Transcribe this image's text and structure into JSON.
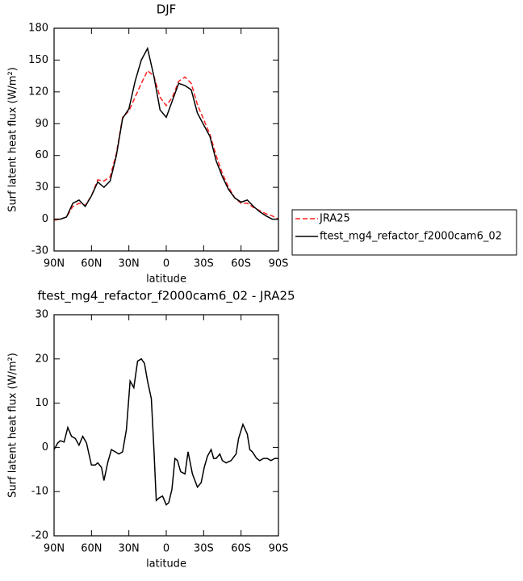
{
  "chart_data": [
    {
      "type": "line",
      "title": "DJF",
      "xlabel": "latitude",
      "ylabel": "Surf latent heat flux (W/m²)",
      "x": [
        90,
        85,
        80,
        75,
        70,
        65,
        60,
        55,
        50,
        45,
        40,
        35,
        30,
        25,
        20,
        15,
        10,
        5,
        0,
        -5,
        -10,
        -15,
        -20,
        -25,
        -30,
        -35,
        -40,
        -45,
        -50,
        -55,
        -60,
        -65,
        -70,
        -75,
        -80,
        -85,
        -90
      ],
      "series": [
        {
          "name": "JRA25",
          "color": "#ff2020",
          "linestyle": "dashed",
          "values": [
            -1,
            0,
            2,
            12,
            15,
            13,
            22,
            37,
            36,
            40,
            62,
            96,
            102,
            115,
            128,
            140,
            135,
            115,
            107,
            115,
            130,
            134,
            128,
            108,
            94,
            80,
            60,
            43,
            30,
            20,
            15,
            15,
            11,
            8,
            5,
            3,
            0
          ]
        },
        {
          "name": "ftest_mg4_refactor_f2000cam6_02",
          "color": "#000000",
          "linestyle": "solid",
          "values": [
            0,
            0,
            2,
            15,
            18,
            12,
            22,
            35,
            30,
            36,
            60,
            95,
            104,
            130,
            150,
            161,
            135,
            103,
            96,
            112,
            128,
            126,
            122,
            100,
            89,
            78,
            55,
            40,
            28,
            20,
            16,
            18,
            12,
            7,
            3,
            0,
            0
          ]
        }
      ],
      "xlim": [
        90,
        -90
      ],
      "xticks": [
        {
          "value": 90,
          "label": "90N"
        },
        {
          "value": 60,
          "label": "60N"
        },
        {
          "value": 30,
          "label": "30N"
        },
        0,
        {
          "value": -30,
          "label": "30S"
        },
        {
          "value": -60,
          "label": "60S"
        },
        {
          "value": -90,
          "label": "90S"
        }
      ],
      "ylim": [
        -30,
        180
      ],
      "yticks": [
        -30,
        0,
        30,
        60,
        90,
        120,
        150,
        180
      ],
      "grid": false,
      "legend": "right"
    },
    {
      "type": "line",
      "title": "ftest_mg4_refactor_f2000cam6_02 - JRA25",
      "xlabel": "latitude",
      "ylabel": "Surf latent heat flux (W/m²)",
      "x": [
        90,
        87,
        85,
        82,
        79,
        76,
        73,
        70,
        67,
        64,
        62,
        60,
        57,
        55,
        52,
        50,
        47,
        44,
        41,
        38,
        35,
        32,
        29,
        26,
        23,
        20,
        17.5,
        15,
        12,
        10,
        8,
        6,
        3,
        0,
        -2,
        -4.5,
        -7,
        -9,
        -11.5,
        -15,
        -17.5,
        -21,
        -25,
        -28,
        -30.5,
        -33,
        -36,
        -38,
        -40,
        -43,
        -45,
        -48,
        -52,
        -56,
        -58,
        -61.5,
        -65,
        -67,
        -69,
        -72.5,
        -75,
        -78,
        -81,
        -84,
        -87,
        -90
      ],
      "series": [
        {
          "color": "#000000",
          "linestyle": "solid",
          "values": [
            -0.5,
            1,
            1.5,
            1.2,
            4.5,
            2.5,
            2,
            0.5,
            2.5,
            1,
            -1.5,
            -4,
            -4,
            -3.5,
            -4.5,
            -7.5,
            -3.5,
            -0.5,
            -1,
            -1.5,
            -1,
            4,
            15,
            13.5,
            19.5,
            20,
            19,
            15,
            11,
            0,
            -12,
            -11.5,
            -11,
            -13,
            -12.5,
            -9.5,
            -2.5,
            -3,
            -5.5,
            -6,
            -1,
            -6,
            -9,
            -8,
            -4.5,
            -2,
            -0.5,
            -2.5,
            -2.5,
            -1.5,
            -3,
            -3.5,
            -3,
            -1.5,
            2,
            5.2,
            3,
            -0.5,
            -1,
            -2.5,
            -3,
            -2.5,
            -2.5,
            -3,
            -2.5,
            -2.5
          ]
        }
      ],
      "xlim": [
        90,
        -90
      ],
      "xticks": [
        {
          "value": 90,
          "label": "90N"
        },
        {
          "value": 60,
          "label": "60N"
        },
        {
          "value": 30,
          "label": "30N"
        },
        0,
        {
          "value": -30,
          "label": "30S"
        },
        {
          "value": -60,
          "label": "60S"
        },
        {
          "value": -90,
          "label": "90S"
        }
      ],
      "ylim": [
        -20,
        30
      ],
      "yticks": [
        -20,
        -10,
        0,
        10,
        20,
        30
      ],
      "grid": false
    }
  ]
}
